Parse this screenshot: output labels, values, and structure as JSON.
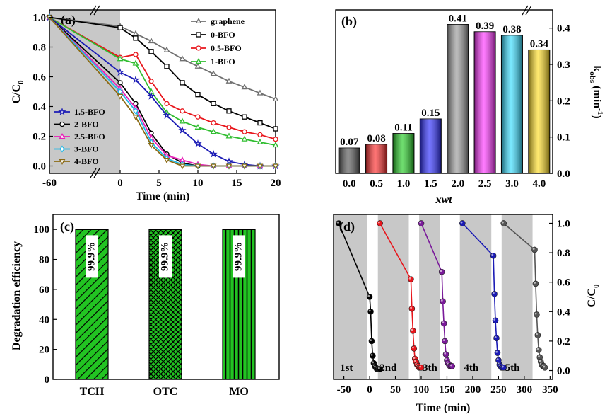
{
  "panels": {
    "a": "(a)",
    "b": "(b)",
    "c": "(c)",
    "d": "(d)"
  },
  "chart_data": [
    {
      "panel": "(a)",
      "type": "line",
      "xlabel": "Time (min)",
      "ylabel": "C/C0",
      "ylabel_main": "C/C",
      "ylabel_sub": "0",
      "xticks": [
        "-60",
        "0",
        "5",
        "10",
        "15",
        "20"
      ],
      "yticks": [
        "0.0",
        "0.2",
        "0.4",
        "0.6",
        "0.8",
        "1.0"
      ],
      "ylim": [
        -0.05,
        1.05
      ],
      "dark_region": "-60 to 0 min",
      "series": [
        {
          "name": "graphene",
          "color": "#707070",
          "marker": "triangle",
          "x": [
            -60,
            0,
            2,
            4,
            6,
            8,
            10,
            12,
            14,
            16,
            18,
            20
          ],
          "y": [
            1.0,
            0.94,
            0.89,
            0.84,
            0.78,
            0.72,
            0.67,
            0.62,
            0.57,
            0.53,
            0.49,
            0.45
          ]
        },
        {
          "name": "0-BFO",
          "color": "#000000",
          "marker": "square",
          "x": [
            -60,
            0,
            2,
            4,
            6,
            8,
            10,
            12,
            14,
            16,
            18,
            20
          ],
          "y": [
            1.0,
            0.93,
            0.86,
            0.77,
            0.67,
            0.56,
            0.48,
            0.42,
            0.37,
            0.33,
            0.29,
            0.25
          ]
        },
        {
          "name": "0.5-BFO",
          "color": "#e8151b",
          "marker": "circle",
          "x": [
            -60,
            0,
            2,
            4,
            6,
            8,
            10,
            12,
            14,
            16,
            18,
            20
          ],
          "y": [
            1.0,
            0.73,
            0.75,
            0.57,
            0.42,
            0.37,
            0.33,
            0.29,
            0.26,
            0.23,
            0.21,
            0.18
          ]
        },
        {
          "name": "1-BFO",
          "color": "#2fbd2f",
          "marker": "triangle",
          "x": [
            -60,
            0,
            2,
            4,
            6,
            8,
            10,
            12,
            14,
            16,
            18,
            20
          ],
          "y": [
            1.0,
            0.72,
            0.69,
            0.5,
            0.36,
            0.3,
            0.26,
            0.23,
            0.2,
            0.18,
            0.16,
            0.14
          ]
        },
        {
          "name": "1.5-BFO",
          "color": "#1b1bb5",
          "marker": "star",
          "x": [
            -60,
            0,
            2,
            4,
            6,
            8,
            10,
            12,
            14,
            16,
            18,
            20
          ],
          "y": [
            1.0,
            0.63,
            0.58,
            0.47,
            0.34,
            0.24,
            0.15,
            0.08,
            0.03,
            0.01,
            0.0,
            0.0
          ]
        },
        {
          "name": "2-BFO",
          "color": "#000000",
          "marker": "circle",
          "x": [
            -60,
            0,
            2,
            4,
            6,
            8,
            10,
            12,
            14,
            16,
            18,
            20
          ],
          "y": [
            1.0,
            0.56,
            0.42,
            0.22,
            0.08,
            0.02,
            0.0,
            0.0,
            0.0,
            0.0,
            0.0,
            0.0
          ]
        },
        {
          "name": "2.5-BFO",
          "color": "#e81fb8",
          "marker": "triangle",
          "x": [
            -60,
            0,
            2,
            4,
            6,
            8,
            10,
            12,
            14,
            16,
            18,
            20
          ],
          "y": [
            1.0,
            0.52,
            0.39,
            0.19,
            0.07,
            0.04,
            0.01,
            0.0,
            0.0,
            0.0,
            0.0,
            0.0
          ]
        },
        {
          "name": "3-BFO",
          "color": "#1fb8e8",
          "marker": "diamond",
          "x": [
            -60,
            0,
            2,
            4,
            6,
            8,
            10,
            12,
            14,
            16,
            18,
            20
          ],
          "y": [
            1.0,
            0.5,
            0.37,
            0.16,
            0.05,
            0.01,
            0.0,
            0.0,
            0.0,
            0.0,
            0.0,
            0.0
          ]
        },
        {
          "name": "4-BFO",
          "color": "#8b6a14",
          "marker": "triangle-down",
          "x": [
            -60,
            0,
            2,
            4,
            6,
            8,
            10,
            12,
            14,
            16,
            18,
            20
          ],
          "y": [
            1.0,
            0.47,
            0.33,
            0.14,
            0.04,
            0.0,
            0.0,
            0.0,
            0.0,
            0.0,
            0.0,
            0.0
          ]
        }
      ]
    },
    {
      "panel": "(b)",
      "type": "bar",
      "xlabel": "xwt",
      "ylabel_main": "k",
      "ylabel_sub": "obs",
      "ylabel_unit": " (min",
      "ylabel_sup": "-1",
      "ylabel_close": ")",
      "categories": [
        "0.0",
        "0.5",
        "1.0",
        "1.5",
        "2.0",
        "2.5",
        "3.0",
        "4.0"
      ],
      "values": [
        0.07,
        0.08,
        0.11,
        0.15,
        0.41,
        0.39,
        0.38,
        0.34
      ],
      "labels": [
        "0.07",
        "0.08",
        "0.11",
        "0.15",
        "0.41",
        "0.39",
        "0.38",
        "0.34"
      ],
      "colors": [
        "#555555",
        "#ff2a2a",
        "#22cc22",
        "#2a2aff",
        "#9a9a9a",
        "#ff33ff",
        "#33ddff",
        "#ffdd22"
      ],
      "yticks": [
        "0.0",
        "0.1",
        "0.2",
        "0.3",
        "0.4"
      ],
      "ylim": [
        0,
        0.45
      ]
    },
    {
      "panel": "(c)",
      "type": "bar",
      "ylabel": "Degradation efficiency",
      "categories": [
        "TCH",
        "OTC",
        "MO"
      ],
      "values": [
        99.9,
        99.9,
        99.9
      ],
      "labels": [
        "99.9%",
        "99.9%",
        "99.9%"
      ],
      "patterns": [
        "diagonal",
        "crosshatch",
        "vertical"
      ],
      "color": "#22c422",
      "yticks": [
        "0",
        "20",
        "40",
        "60",
        "80",
        "100"
      ],
      "ylim": [
        0,
        110
      ]
    },
    {
      "panel": "(d)",
      "type": "scatter",
      "xlabel": "Time (min)",
      "ylabel_main": "C/C",
      "ylabel_sub": "0",
      "xticks": [
        "-50",
        "0",
        "50",
        "100",
        "150",
        "200",
        "250",
        "300",
        "350"
      ],
      "yticks": [
        "0.0",
        "0.2",
        "0.4",
        "0.6",
        "0.8",
        "1.0"
      ],
      "cycle_labels": [
        "1st",
        "2nd",
        "3th",
        "4th",
        "5th"
      ],
      "series": [
        {
          "name": "1st",
          "color": "#000000",
          "x": [
            -60,
            0,
            2,
            4,
            6,
            8,
            10,
            12,
            14,
            16,
            18,
            20
          ],
          "y": [
            1.0,
            0.5,
            0.4,
            0.2,
            0.1,
            0.05,
            0.03,
            0.02,
            0.01,
            0.01,
            0.01,
            0.01
          ]
        },
        {
          "name": "2nd",
          "color": "#e8151b",
          "x": [
            20,
            80,
            82,
            84,
            86,
            88,
            90,
            92,
            94,
            96,
            98,
            100
          ],
          "y": [
            1.0,
            0.62,
            0.42,
            0.27,
            0.15,
            0.08,
            0.06,
            0.04,
            0.03,
            0.02,
            0.02,
            0.02
          ]
        },
        {
          "name": "3th",
          "color": "#7a1a9a",
          "x": [
            100,
            140,
            142,
            144,
            146,
            148,
            150,
            152,
            154,
            156,
            158,
            160
          ],
          "y": [
            1.0,
            0.67,
            0.47,
            0.32,
            0.2,
            0.11,
            0.07,
            0.05,
            0.04,
            0.03,
            0.03,
            0.03
          ]
        },
        {
          "name": "4th",
          "color": "#1b1bb5",
          "x": [
            180,
            240,
            242,
            244,
            246,
            248,
            250,
            252,
            254,
            256,
            258,
            260
          ],
          "y": [
            1.0,
            0.78,
            0.52,
            0.34,
            0.22,
            0.12,
            0.07,
            0.04,
            0.03,
            0.02,
            0.02,
            0.02
          ]
        },
        {
          "name": "5th",
          "color": "#555555",
          "x": [
            260,
            320,
            322,
            324,
            326,
            328,
            330,
            332,
            334,
            336,
            338,
            340
          ],
          "y": [
            1.0,
            0.82,
            0.59,
            0.38,
            0.24,
            0.14,
            0.09,
            0.06,
            0.04,
            0.03,
            0.03,
            0.02
          ]
        }
      ]
    }
  ]
}
